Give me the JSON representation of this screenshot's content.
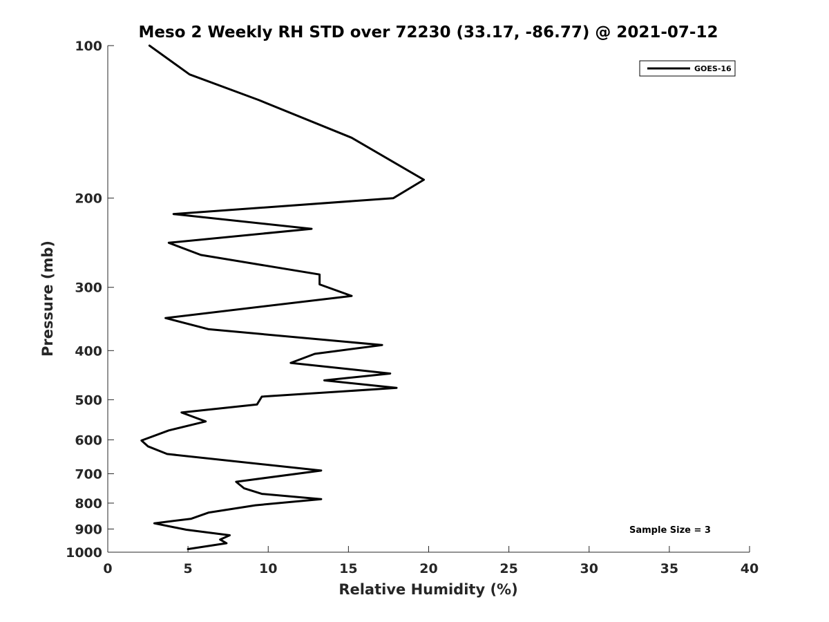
{
  "chart_data": {
    "type": "line",
    "title": "Meso 2 Weekly RH STD over 72230 (33.17, -86.77) @ 2021-07-12",
    "xlabel": "Relative Humidity (%)",
    "ylabel": "Pressure (mb)",
    "xlim": [
      0,
      40
    ],
    "ylim": [
      100,
      1000
    ],
    "y_scale": "log",
    "y_reversed": true,
    "x_ticks": [
      0,
      5,
      10,
      15,
      20,
      25,
      30,
      35,
      40
    ],
    "y_ticks": [
      100,
      200,
      300,
      400,
      500,
      600,
      700,
      800,
      900,
      1000
    ],
    "grid": false,
    "legend_position": "top-right",
    "series": [
      {
        "name": "GOES-16",
        "color": "#000000",
        "x": [
          2.6,
          5.1,
          9.4,
          15.2,
          19.7,
          17.8,
          4.1,
          12.7,
          3.8,
          5.8,
          13.2,
          13.2,
          15.2,
          3.6,
          6.3,
          17.1,
          12.9,
          11.4,
          17.6,
          13.5,
          18.0,
          9.6,
          9.3,
          4.6,
          6.1,
          3.8,
          2.1,
          2.5,
          3.7,
          13.3,
          8.0,
          8.5,
          9.6,
          13.3,
          9.2,
          6.3,
          5.2,
          2.9,
          4.9,
          7.6,
          7.0,
          7.4,
          5.0
        ],
        "y": [
          100,
          114,
          128,
          152,
          184,
          200,
          215,
          230,
          245,
          259,
          283,
          296,
          312,
          345,
          363,
          390,
          406,
          423,
          444,
          458,
          474,
          493,
          511,
          530,
          552,
          575,
          602,
          618,
          640,
          690,
          726,
          748,
          767,
          786,
          808,
          835,
          859,
          877,
          903,
          926,
          944,
          960,
          986
        ]
      }
    ],
    "annotations": [
      "Sample Size = 3"
    ]
  }
}
